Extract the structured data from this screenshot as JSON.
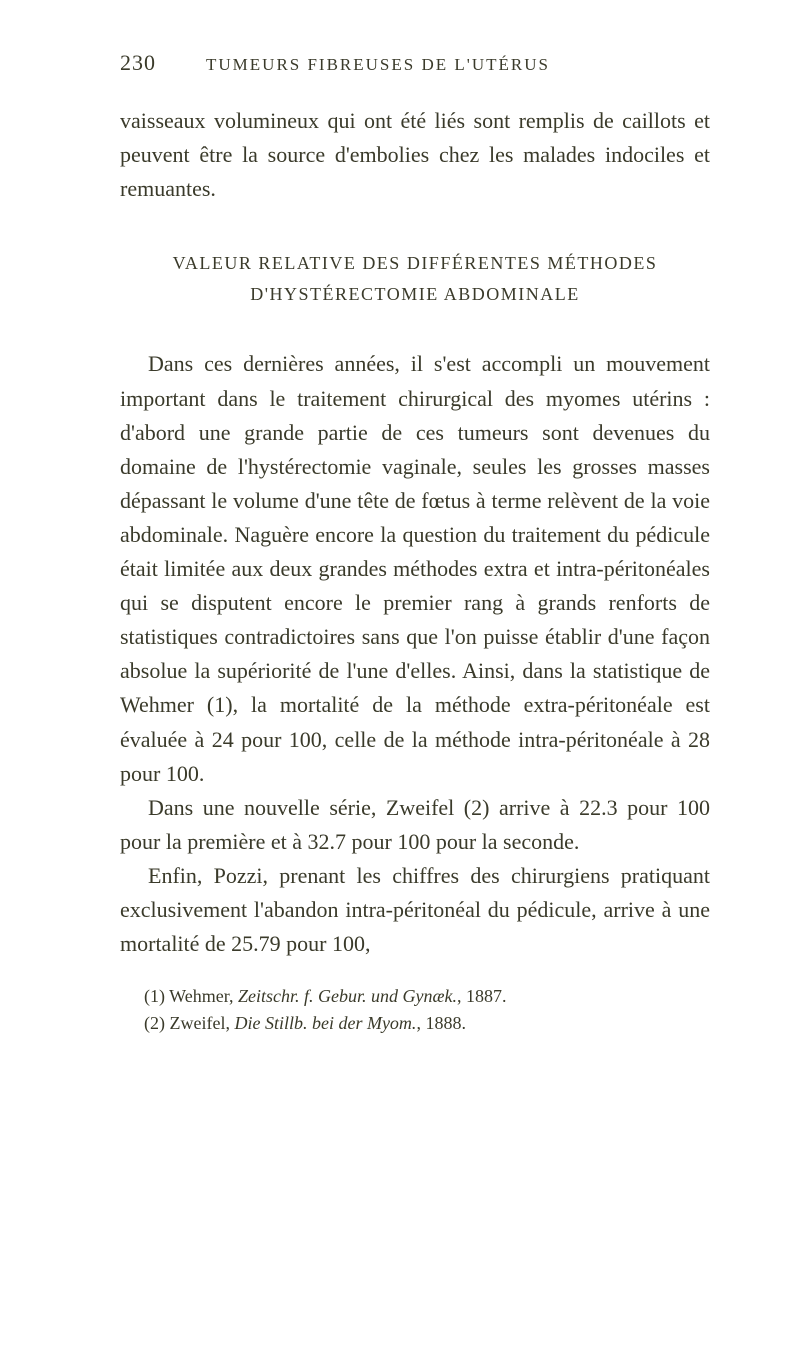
{
  "header": {
    "page_number": "230",
    "running_head": "TUMEURS FIBREUSES DE L'UTÉRUS"
  },
  "intro_paragraph": "vaisseaux volumineux qui ont été liés sont remplis de caillots et peuvent être la source d'embolies chez les malades indociles et remuantes.",
  "section_title_line1": "VALEUR RELATIVE DES DIFFÉRENTES MÉTHODES",
  "section_title_line2": "D'HYSTÉRECTOMIE ABDOMINALE",
  "para1": "Dans ces dernières années, il s'est accompli un mouvement important dans le traitement chirurgical des myomes utérins : d'abord une grande partie de ces tumeurs sont devenues du domaine de l'hystérectomie vaginale, seules les grosses masses dépassant le volume d'une tête de fœtus à terme relèvent de la voie abdominale. Naguère encore la question du traitement du pédicule était limitée aux deux grandes méthodes extra et intra-péritonéales qui se disputent encore le premier rang à grands renforts de statistiques contradictoires sans que l'on puisse établir d'une façon absolue la supériorité de l'une d'elles. Ainsi, dans la statistique de Wehmer (1), la mortalité de la méthode extra-péritonéale est évaluée à 24 pour 100, celle de la méthode intra-péritonéale à 28 pour 100.",
  "para2": "Dans une nouvelle série, Zweifel (2) arrive à 22.3 pour 100 pour la première et à 32.7 pour 100 pour la seconde.",
  "para3": "Enfin, Pozzi, prenant les chiffres des chirurgiens pratiquant exclusivement l'abandon intra-péritonéal du pédicule, arrive à une mortalité de 25.79 pour 100,",
  "footnote1_label": "(1) Wehmer, ",
  "footnote1_italic": "Zeitschr. f. Gebur. und Gynæk.",
  "footnote1_tail": ", 1887.",
  "footnote2_label": "(2) Zweifel, ",
  "footnote2_italic": "Die Stillb. bei der Myom.",
  "footnote2_tail": ", 1888."
}
